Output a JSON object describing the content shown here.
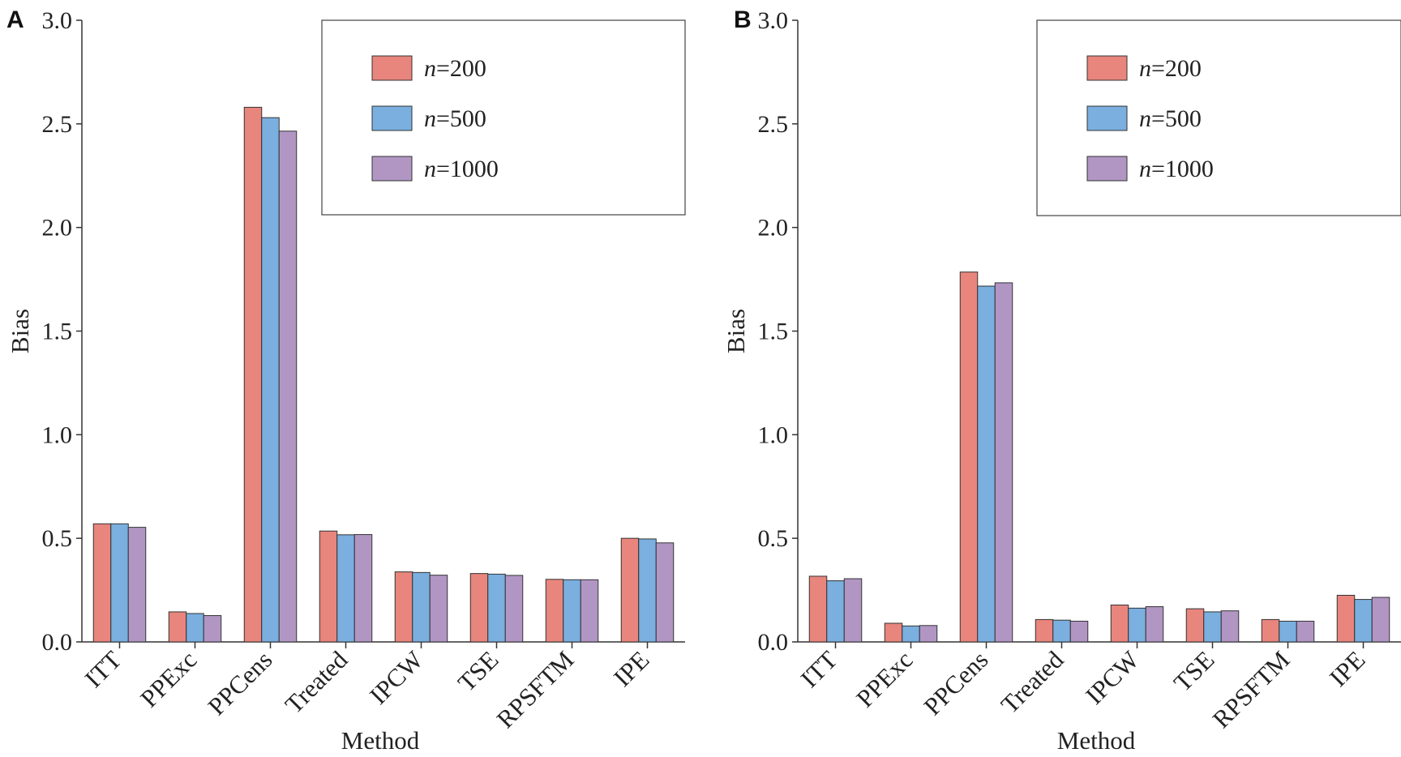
{
  "chart_data": [
    {
      "panel": "A",
      "type": "bar",
      "xlabel": "Method",
      "ylabel": "Bias",
      "ylim": [
        0,
        3.0
      ],
      "yticks": [
        "0.0",
        "0.5",
        "1.0",
        "1.5",
        "2.0",
        "2.5",
        "3.0"
      ],
      "categories": [
        "ITT",
        "PPExc",
        "PPCens",
        "Treated",
        "IPCW",
        "TSE",
        "RPSFTM",
        "IPE"
      ],
      "legend_position": "top-right",
      "series": [
        {
          "name_italic": "n",
          "name_rest": "=200",
          "color": "#E8857D",
          "values": [
            0.57,
            0.145,
            2.58,
            0.535,
            0.338,
            0.33,
            0.302,
            0.5
          ]
        },
        {
          "name_italic": "n",
          "name_rest": "=500",
          "color": "#7AAFDF",
          "values": [
            0.57,
            0.137,
            2.53,
            0.517,
            0.335,
            0.327,
            0.3,
            0.497
          ]
        },
        {
          "name_italic": "n",
          "name_rest": "=1000",
          "color": "#B196C4",
          "values": [
            0.553,
            0.127,
            2.465,
            0.518,
            0.322,
            0.321,
            0.3,
            0.478
          ]
        }
      ]
    },
    {
      "panel": "B",
      "type": "bar",
      "xlabel": "Method",
      "ylabel": "Bias",
      "ylim": [
        0,
        3.0
      ],
      "yticks": [
        "0.0",
        "0.5",
        "1.0",
        "1.5",
        "2.0",
        "2.5",
        "3.0"
      ],
      "categories": [
        "ITT",
        "PPExc",
        "PPCens",
        "Treated",
        "IPCW",
        "TSE",
        "RPSFTM",
        "IPE"
      ],
      "legend_position": "top-right",
      "series": [
        {
          "name_italic": "n",
          "name_rest": "=200",
          "color": "#E8857D",
          "values": [
            0.317,
            0.09,
            1.785,
            0.108,
            0.178,
            0.16,
            0.108,
            0.225
          ]
        },
        {
          "name_italic": "n",
          "name_rest": "=500",
          "color": "#7AAFDF",
          "values": [
            0.295,
            0.077,
            1.717,
            0.105,
            0.163,
            0.145,
            0.1,
            0.205
          ]
        },
        {
          "name_italic": "n",
          "name_rest": "=1000",
          "color": "#B196C4",
          "values": [
            0.305,
            0.079,
            1.733,
            0.1,
            0.17,
            0.15,
            0.1,
            0.215
          ]
        }
      ]
    }
  ]
}
